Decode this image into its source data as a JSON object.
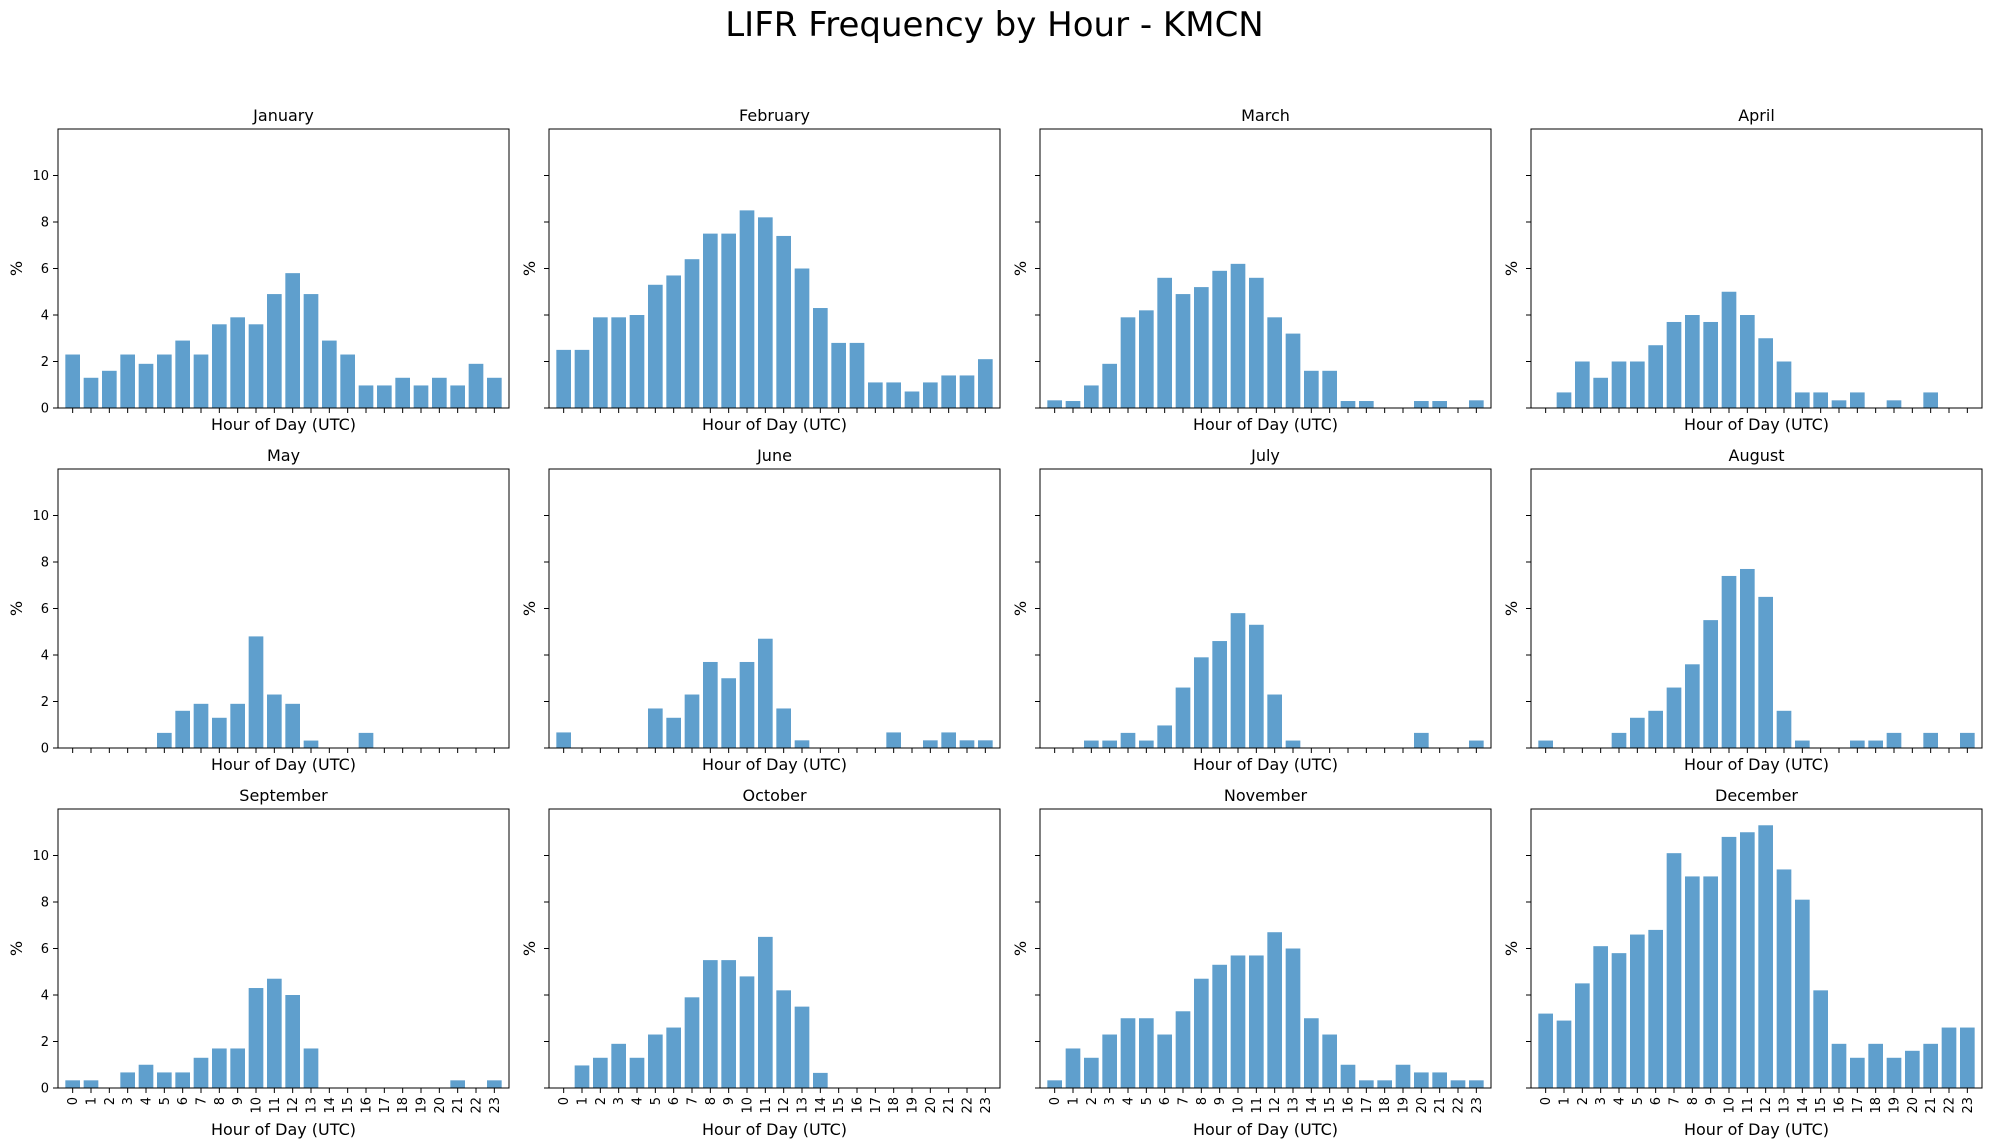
{
  "figure": {
    "title": "LIFR Frequency by Hour - KMCN",
    "bar_color": "#5f9fcd"
  },
  "chart_data": [
    {
      "type": "bar",
      "title": "January",
      "xlabel": "Hour of Day (UTC)",
      "ylabel": "%",
      "ylim": [
        0,
        12
      ],
      "yticks": [
        0,
        2,
        4,
        6,
        8,
        10
      ],
      "categories": [
        "0",
        "1",
        "2",
        "3",
        "4",
        "5",
        "6",
        "7",
        "8",
        "9",
        "10",
        "11",
        "12",
        "13",
        "14",
        "15",
        "16",
        "17",
        "18",
        "19",
        "20",
        "21",
        "22",
        "23"
      ],
      "values": [
        2.3,
        1.3,
        1.6,
        2.3,
        1.9,
        2.3,
        2.9,
        2.3,
        3.6,
        3.9,
        3.6,
        4.9,
        5.8,
        4.9,
        2.9,
        2.3,
        0.97,
        0.97,
        1.3,
        0.97,
        1.3,
        0.97,
        1.9,
        1.3
      ]
    },
    {
      "type": "bar",
      "title": "February",
      "xlabel": "Hour of Day (UTC)",
      "ylabel": "%",
      "ylim": [
        0,
        12
      ],
      "yticks": [
        0,
        2,
        4,
        6,
        8,
        10
      ],
      "categories": [
        "0",
        "1",
        "2",
        "3",
        "4",
        "5",
        "6",
        "7",
        "8",
        "9",
        "10",
        "11",
        "12",
        "13",
        "14",
        "15",
        "16",
        "17",
        "18",
        "19",
        "20",
        "21",
        "22",
        "23"
      ],
      "values": [
        2.5,
        2.5,
        3.9,
        3.9,
        4.0,
        5.3,
        5.7,
        6.4,
        7.5,
        7.5,
        8.5,
        8.2,
        7.4,
        6.0,
        4.3,
        2.8,
        2.8,
        1.1,
        1.1,
        0.71,
        1.1,
        1.4,
        1.4,
        2.1
      ]
    },
    {
      "type": "bar",
      "title": "March",
      "xlabel": "Hour of Day (UTC)",
      "ylabel": "%",
      "ylim": [
        0,
        12
      ],
      "yticks": [
        0,
        2,
        4,
        6,
        8,
        10
      ],
      "categories": [
        "0",
        "1",
        "2",
        "3",
        "4",
        "5",
        "6",
        "7",
        "8",
        "9",
        "10",
        "11",
        "12",
        "13",
        "14",
        "15",
        "16",
        "17",
        "18",
        "19",
        "20",
        "21",
        "22",
        "23"
      ],
      "values": [
        0.33,
        0.3,
        0.97,
        1.9,
        3.9,
        4.2,
        5.6,
        4.9,
        5.2,
        5.9,
        6.2,
        5.6,
        3.9,
        3.2,
        1.6,
        1.6,
        0.3,
        0.3,
        0,
        0,
        0.3,
        0.3,
        0,
        0.33
      ]
    },
    {
      "type": "bar",
      "title": "April",
      "xlabel": "Hour of Day (UTC)",
      "ylabel": "%",
      "ylim": [
        0,
        12
      ],
      "yticks": [
        0,
        2,
        4,
        6,
        8,
        10
      ],
      "categories": [
        "0",
        "1",
        "2",
        "3",
        "4",
        "5",
        "6",
        "7",
        "8",
        "9",
        "10",
        "11",
        "12",
        "13",
        "14",
        "15",
        "16",
        "17",
        "18",
        "19",
        "20",
        "21",
        "22",
        "23"
      ],
      "values": [
        0,
        0.67,
        2.0,
        1.3,
        2.0,
        2.0,
        2.7,
        3.7,
        4.0,
        3.7,
        5.0,
        4.0,
        3.0,
        2.0,
        0.67,
        0.67,
        0.33,
        0.67,
        0,
        0.33,
        0,
        0.67,
        0,
        0
      ]
    },
    {
      "type": "bar",
      "title": "May",
      "xlabel": "Hour of Day (UTC)",
      "ylabel": "%",
      "ylim": [
        0,
        12
      ],
      "yticks": [
        0,
        2,
        4,
        6,
        8,
        10
      ],
      "categories": [
        "0",
        "1",
        "2",
        "3",
        "4",
        "5",
        "6",
        "7",
        "8",
        "9",
        "10",
        "11",
        "12",
        "13",
        "14",
        "15",
        "16",
        "17",
        "18",
        "19",
        "20",
        "21",
        "22",
        "23"
      ],
      "values": [
        0,
        0,
        0,
        0,
        0,
        0.65,
        1.6,
        1.9,
        1.3,
        1.9,
        4.8,
        2.3,
        1.9,
        0.32,
        0,
        0,
        0.65,
        0,
        0,
        0,
        0,
        0,
        0,
        0
      ]
    },
    {
      "type": "bar",
      "title": "June",
      "xlabel": "Hour of Day (UTC)",
      "ylabel": "%",
      "ylim": [
        0,
        12
      ],
      "yticks": [
        0,
        2,
        4,
        6,
        8,
        10
      ],
      "categories": [
        "0",
        "1",
        "2",
        "3",
        "4",
        "5",
        "6",
        "7",
        "8",
        "9",
        "10",
        "11",
        "12",
        "13",
        "14",
        "15",
        "16",
        "17",
        "18",
        "19",
        "20",
        "21",
        "22",
        "23"
      ],
      "values": [
        0.67,
        0,
        0,
        0,
        0,
        1.7,
        1.3,
        2.3,
        3.7,
        3.0,
        3.7,
        4.7,
        1.7,
        0.33,
        0,
        0,
        0,
        0,
        0.67,
        0,
        0.33,
        0.67,
        0.33,
        0.33
      ]
    },
    {
      "type": "bar",
      "title": "July",
      "xlabel": "Hour of Day (UTC)",
      "ylabel": "%",
      "ylim": [
        0,
        12
      ],
      "yticks": [
        0,
        2,
        4,
        6,
        8,
        10
      ],
      "categories": [
        "0",
        "1",
        "2",
        "3",
        "4",
        "5",
        "6",
        "7",
        "8",
        "9",
        "10",
        "11",
        "12",
        "13",
        "14",
        "15",
        "16",
        "17",
        "18",
        "19",
        "20",
        "21",
        "22",
        "23"
      ],
      "values": [
        0,
        0,
        0.32,
        0.32,
        0.65,
        0.32,
        0.97,
        2.6,
        3.9,
        4.6,
        5.8,
        5.3,
        2.3,
        0.32,
        0,
        0,
        0,
        0,
        0,
        0,
        0.65,
        0,
        0,
        0.32
      ]
    },
    {
      "type": "bar",
      "title": "August",
      "xlabel": "Hour of Day (UTC)",
      "ylabel": "%",
      "ylim": [
        0,
        12
      ],
      "yticks": [
        0,
        2,
        4,
        6,
        8,
        10
      ],
      "categories": [
        "0",
        "1",
        "2",
        "3",
        "4",
        "5",
        "6",
        "7",
        "8",
        "9",
        "10",
        "11",
        "12",
        "13",
        "14",
        "15",
        "16",
        "17",
        "18",
        "19",
        "20",
        "21",
        "22",
        "23"
      ],
      "values": [
        0.32,
        0,
        0,
        0,
        0.65,
        1.3,
        1.6,
        2.6,
        3.6,
        5.5,
        7.4,
        7.7,
        6.5,
        1.6,
        0.32,
        0,
        0,
        0.32,
        0.32,
        0.65,
        0,
        0.65,
        0,
        0.65
      ]
    },
    {
      "type": "bar",
      "title": "September",
      "xlabel": "Hour of Day (UTC)",
      "ylabel": "%",
      "ylim": [
        0,
        12
      ],
      "yticks": [
        0,
        2,
        4,
        6,
        8,
        10
      ],
      "categories": [
        "0",
        "1",
        "2",
        "3",
        "4",
        "5",
        "6",
        "7",
        "8",
        "9",
        "10",
        "11",
        "12",
        "13",
        "14",
        "15",
        "16",
        "17",
        "18",
        "19",
        "20",
        "21",
        "22",
        "23"
      ],
      "values": [
        0.33,
        0.33,
        0,
        0.67,
        1.0,
        0.67,
        0.67,
        1.3,
        1.7,
        1.7,
        4.3,
        4.7,
        4.0,
        1.7,
        0,
        0,
        0,
        0,
        0,
        0,
        0,
        0.33,
        0,
        0.33
      ]
    },
    {
      "type": "bar",
      "title": "October",
      "xlabel": "Hour of Day (UTC)",
      "ylabel": "%",
      "ylim": [
        0,
        12
      ],
      "yticks": [
        0,
        2,
        4,
        6,
        8,
        10
      ],
      "categories": [
        "0",
        "1",
        "2",
        "3",
        "4",
        "5",
        "6",
        "7",
        "8",
        "9",
        "10",
        "11",
        "12",
        "13",
        "14",
        "15",
        "16",
        "17",
        "18",
        "19",
        "20",
        "21",
        "22",
        "23"
      ],
      "values": [
        0,
        0.97,
        1.3,
        1.9,
        1.3,
        2.3,
        2.6,
        3.9,
        5.5,
        5.5,
        4.8,
        6.5,
        4.2,
        3.5,
        0.65,
        0,
        0,
        0,
        0,
        0,
        0,
        0,
        0,
        0
      ]
    },
    {
      "type": "bar",
      "title": "November",
      "xlabel": "Hour of Day (UTC)",
      "ylabel": "%",
      "ylim": [
        0,
        12
      ],
      "yticks": [
        0,
        2,
        4,
        6,
        8,
        10
      ],
      "categories": [
        "0",
        "1",
        "2",
        "3",
        "4",
        "5",
        "6",
        "7",
        "8",
        "9",
        "10",
        "11",
        "12",
        "13",
        "14",
        "15",
        "16",
        "17",
        "18",
        "19",
        "20",
        "21",
        "22",
        "23"
      ],
      "values": [
        0.33,
        1.7,
        1.3,
        2.3,
        3.0,
        3.0,
        2.3,
        3.3,
        4.7,
        5.3,
        5.7,
        5.7,
        6.7,
        6.0,
        3.0,
        2.3,
        1.0,
        0.33,
        0.33,
        1.0,
        0.67,
        0.67,
        0.33,
        0.33
      ]
    },
    {
      "type": "bar",
      "title": "December",
      "xlabel": "Hour of Day (UTC)",
      "ylabel": "%",
      "ylim": [
        0,
        12
      ],
      "yticks": [
        0,
        2,
        4,
        6,
        8,
        10
      ],
      "categories": [
        "0",
        "1",
        "2",
        "3",
        "4",
        "5",
        "6",
        "7",
        "8",
        "9",
        "10",
        "11",
        "12",
        "13",
        "14",
        "15",
        "16",
        "17",
        "18",
        "19",
        "20",
        "21",
        "22",
        "23"
      ],
      "values": [
        3.2,
        2.9,
        4.5,
        6.1,
        5.8,
        6.6,
        6.8,
        10.1,
        9.1,
        9.1,
        10.8,
        11.0,
        11.3,
        9.4,
        8.1,
        4.2,
        1.9,
        1.3,
        1.9,
        1.3,
        1.6,
        1.9,
        2.6,
        2.6
      ]
    }
  ]
}
